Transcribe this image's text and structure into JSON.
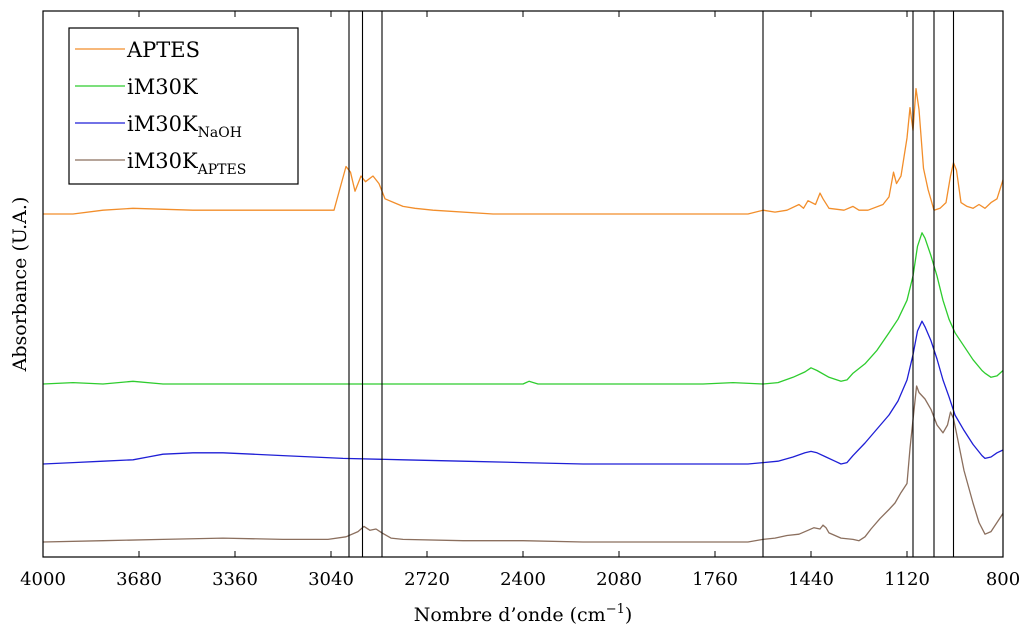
{
  "chart_data": {
    "type": "line",
    "title": "",
    "xlabel_main": "Nombre d’onde (cm",
    "xlabel_sup": "−1",
    "xlabel_close": ")",
    "ylabel": "Absorbance (U.A.)",
    "xlim": [
      4000,
      800
    ],
    "x_reversed": true,
    "y_tick_labels": false,
    "x_ticks": [
      4000,
      3680,
      3360,
      3040,
      2720,
      2400,
      2080,
      1760,
      1440,
      1120,
      800
    ],
    "grid": false,
    "legend_position": "top-left",
    "vertical_reference_lines": [
      2980,
      2935,
      2870,
      1600,
      1100,
      1030,
      965
    ],
    "series": [
      {
        "name": "APTES",
        "name_base": "APTES",
        "name_sub": "",
        "color": "#f28e2b",
        "points": [
          [
            4000,
            0.0
          ],
          [
            3900,
            0.0
          ],
          [
            3800,
            0.02
          ],
          [
            3700,
            0.03
          ],
          [
            3500,
            0.02
          ],
          [
            3200,
            0.02
          ],
          [
            3030,
            0.02
          ],
          [
            2990,
            0.25
          ],
          [
            2975,
            0.22
          ],
          [
            2960,
            0.12
          ],
          [
            2940,
            0.2
          ],
          [
            2925,
            0.17
          ],
          [
            2900,
            0.2
          ],
          [
            2880,
            0.16
          ],
          [
            2860,
            0.08
          ],
          [
            2830,
            0.06
          ],
          [
            2800,
            0.04
          ],
          [
            2760,
            0.03
          ],
          [
            2700,
            0.02
          ],
          [
            2500,
            0.0
          ],
          [
            2300,
            0.0
          ],
          [
            2000,
            0.0
          ],
          [
            1750,
            0.0
          ],
          [
            1650,
            0.0
          ],
          [
            1600,
            0.02
          ],
          [
            1560,
            0.01
          ],
          [
            1520,
            0.02
          ],
          [
            1480,
            0.05
          ],
          [
            1465,
            0.03
          ],
          [
            1450,
            0.07
          ],
          [
            1425,
            0.05
          ],
          [
            1410,
            0.11
          ],
          [
            1400,
            0.08
          ],
          [
            1380,
            0.03
          ],
          [
            1330,
            0.02
          ],
          [
            1300,
            0.04
          ],
          [
            1280,
            0.02
          ],
          [
            1250,
            0.02
          ],
          [
            1200,
            0.05
          ],
          [
            1180,
            0.09
          ],
          [
            1165,
            0.22
          ],
          [
            1155,
            0.16
          ],
          [
            1140,
            0.2
          ],
          [
            1120,
            0.4
          ],
          [
            1110,
            0.56
          ],
          [
            1100,
            0.44
          ],
          [
            1090,
            0.66
          ],
          [
            1080,
            0.55
          ],
          [
            1065,
            0.24
          ],
          [
            1050,
            0.13
          ],
          [
            1030,
            0.02
          ],
          [
            1010,
            0.03
          ],
          [
            990,
            0.06
          ],
          [
            975,
            0.2
          ],
          [
            965,
            0.27
          ],
          [
            955,
            0.23
          ],
          [
            940,
            0.06
          ],
          [
            920,
            0.04
          ],
          [
            900,
            0.03
          ],
          [
            880,
            0.05
          ],
          [
            860,
            0.03
          ],
          [
            840,
            0.06
          ],
          [
            820,
            0.08
          ],
          [
            800,
            0.18
          ]
        ]
      },
      {
        "name": "iM30K",
        "name_base": "iM30K",
        "name_sub": "",
        "color": "#2ecc2e",
        "points": [
          [
            4000,
            0.0
          ],
          [
            3900,
            0.01
          ],
          [
            3800,
            0.0
          ],
          [
            3700,
            0.02
          ],
          [
            3600,
            0.0
          ],
          [
            3400,
            0.0
          ],
          [
            3000,
            0.0
          ],
          [
            2700,
            0.0
          ],
          [
            2400,
            0.0
          ],
          [
            2380,
            0.02
          ],
          [
            2350,
            0.0
          ],
          [
            2100,
            0.0
          ],
          [
            1800,
            0.0
          ],
          [
            1700,
            0.01
          ],
          [
            1600,
            0.0
          ],
          [
            1550,
            0.01
          ],
          [
            1500,
            0.05
          ],
          [
            1460,
            0.09
          ],
          [
            1440,
            0.12
          ],
          [
            1420,
            0.1
          ],
          [
            1380,
            0.05
          ],
          [
            1340,
            0.02
          ],
          [
            1320,
            0.03
          ],
          [
            1300,
            0.08
          ],
          [
            1260,
            0.15
          ],
          [
            1220,
            0.25
          ],
          [
            1180,
            0.38
          ],
          [
            1150,
            0.48
          ],
          [
            1120,
            0.62
          ],
          [
            1100,
            0.8
          ],
          [
            1085,
            1.02
          ],
          [
            1070,
            1.12
          ],
          [
            1060,
            1.08
          ],
          [
            1040,
            0.95
          ],
          [
            1020,
            0.8
          ],
          [
            1000,
            0.62
          ],
          [
            980,
            0.48
          ],
          [
            960,
            0.38
          ],
          [
            930,
            0.28
          ],
          [
            900,
            0.18
          ],
          [
            870,
            0.1
          ],
          [
            860,
            0.08
          ],
          [
            840,
            0.05
          ],
          [
            820,
            0.06
          ],
          [
            800,
            0.1
          ]
        ]
      },
      {
        "name": "iM30K_NaOH",
        "name_base": "iM30K",
        "name_sub": "NaOH",
        "color": "#1f1fd6",
        "points": [
          [
            4000,
            0.0
          ],
          [
            3900,
            0.01
          ],
          [
            3800,
            0.02
          ],
          [
            3700,
            0.03
          ],
          [
            3650,
            0.05
          ],
          [
            3600,
            0.07
          ],
          [
            3500,
            0.08
          ],
          [
            3400,
            0.08
          ],
          [
            3300,
            0.07
          ],
          [
            3200,
            0.06
          ],
          [
            3100,
            0.05
          ],
          [
            3000,
            0.04
          ],
          [
            2800,
            0.03
          ],
          [
            2600,
            0.02
          ],
          [
            2400,
            0.01
          ],
          [
            2200,
            0.0
          ],
          [
            2000,
            0.0
          ],
          [
            1800,
            0.0
          ],
          [
            1650,
            0.0
          ],
          [
            1600,
            0.01
          ],
          [
            1550,
            0.02
          ],
          [
            1500,
            0.05
          ],
          [
            1460,
            0.08
          ],
          [
            1440,
            0.09
          ],
          [
            1420,
            0.08
          ],
          [
            1390,
            0.05
          ],
          [
            1360,
            0.02
          ],
          [
            1340,
            0.0
          ],
          [
            1320,
            0.01
          ],
          [
            1300,
            0.06
          ],
          [
            1260,
            0.15
          ],
          [
            1220,
            0.25
          ],
          [
            1180,
            0.35
          ],
          [
            1150,
            0.45
          ],
          [
            1120,
            0.6
          ],
          [
            1100,
            0.78
          ],
          [
            1085,
            0.95
          ],
          [
            1070,
            1.02
          ],
          [
            1060,
            0.98
          ],
          [
            1040,
            0.88
          ],
          [
            1020,
            0.75
          ],
          [
            1000,
            0.6
          ],
          [
            980,
            0.48
          ],
          [
            960,
            0.35
          ],
          [
            930,
            0.24
          ],
          [
            900,
            0.14
          ],
          [
            870,
            0.06
          ],
          [
            860,
            0.04
          ],
          [
            840,
            0.05
          ],
          [
            820,
            0.08
          ],
          [
            800,
            0.1
          ]
        ]
      },
      {
        "name": "iM30K_APTES",
        "name_base": "iM30K",
        "name_sub": "APTES",
        "color": "#8b6f5e",
        "points": [
          [
            4000,
            0.0
          ],
          [
            3800,
            0.01
          ],
          [
            3600,
            0.02
          ],
          [
            3400,
            0.03
          ],
          [
            3200,
            0.02
          ],
          [
            3050,
            0.02
          ],
          [
            2990,
            0.04
          ],
          [
            2950,
            0.08
          ],
          [
            2930,
            0.12
          ],
          [
            2910,
            0.09
          ],
          [
            2890,
            0.1
          ],
          [
            2870,
            0.07
          ],
          [
            2840,
            0.03
          ],
          [
            2800,
            0.02
          ],
          [
            2600,
            0.01
          ],
          [
            2400,
            0.01
          ],
          [
            2200,
            0.0
          ],
          [
            2000,
            0.0
          ],
          [
            1800,
            0.0
          ],
          [
            1650,
            0.0
          ],
          [
            1600,
            0.02
          ],
          [
            1560,
            0.03
          ],
          [
            1520,
            0.05
          ],
          [
            1480,
            0.06
          ],
          [
            1450,
            0.09
          ],
          [
            1430,
            0.11
          ],
          [
            1410,
            0.1
          ],
          [
            1400,
            0.13
          ],
          [
            1390,
            0.11
          ],
          [
            1380,
            0.07
          ],
          [
            1340,
            0.03
          ],
          [
            1300,
            0.02
          ],
          [
            1280,
            0.01
          ],
          [
            1260,
            0.04
          ],
          [
            1240,
            0.1
          ],
          [
            1210,
            0.18
          ],
          [
            1180,
            0.25
          ],
          [
            1160,
            0.3
          ],
          [
            1140,
            0.38
          ],
          [
            1120,
            0.45
          ],
          [
            1110,
            0.72
          ],
          [
            1095,
            1.05
          ],
          [
            1088,
            1.2
          ],
          [
            1080,
            1.15
          ],
          [
            1060,
            1.1
          ],
          [
            1040,
            1.02
          ],
          [
            1020,
            0.9
          ],
          [
            1000,
            0.84
          ],
          [
            985,
            0.9
          ],
          [
            975,
            1.0
          ],
          [
            965,
            0.95
          ],
          [
            950,
            0.78
          ],
          [
            930,
            0.55
          ],
          [
            900,
            0.3
          ],
          [
            880,
            0.15
          ],
          [
            860,
            0.06
          ],
          [
            840,
            0.08
          ],
          [
            820,
            0.15
          ],
          [
            800,
            0.22
          ]
        ]
      }
    ]
  }
}
